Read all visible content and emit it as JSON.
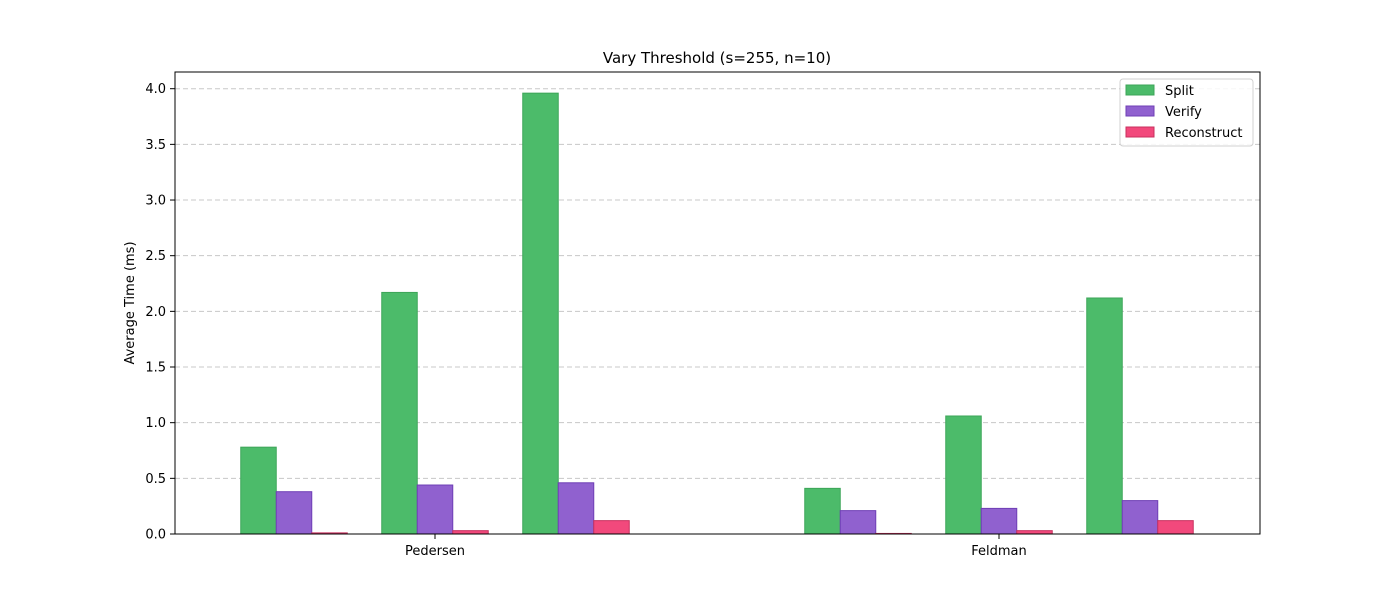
{
  "chart_data": {
    "type": "bar",
    "title": "Vary Threshold (s=255, n=10)",
    "xlabel": "",
    "ylabel": "Average Time (ms)",
    "ylim": [
      0,
      4.15
    ],
    "yticks": [
      "0.0",
      "0.5",
      "1.0",
      "1.5",
      "2.0",
      "2.5",
      "3.0",
      "3.5",
      "4.0"
    ],
    "grid": "y-dashed",
    "legend_position": "top-right",
    "groups": [
      {
        "label": "Pedersen",
        "subgroups": [
          {
            "Split": 0.78,
            "Verify": 0.38,
            "Reconstruct": 0.01
          },
          {
            "Split": 2.17,
            "Verify": 0.44,
            "Reconstruct": 0.03
          },
          {
            "Split": 3.96,
            "Verify": 0.46,
            "Reconstruct": 0.12
          }
        ]
      },
      {
        "label": "Feldman",
        "subgroups": [
          {
            "Split": 0.41,
            "Verify": 0.21,
            "Reconstruct": 0.005
          },
          {
            "Split": 1.06,
            "Verify": 0.23,
            "Reconstruct": 0.03
          },
          {
            "Split": 2.12,
            "Verify": 0.3,
            "Reconstruct": 0.12
          }
        ]
      }
    ],
    "series": [
      {
        "name": "Split",
        "color": "#4cbb6a",
        "edge": "#3da558"
      },
      {
        "name": "Verify",
        "color": "#9061cf",
        "edge": "#6f3fb5"
      },
      {
        "name": "Reconstruct",
        "color": "#f2497c",
        "edge": "#c8305e"
      }
    ]
  }
}
